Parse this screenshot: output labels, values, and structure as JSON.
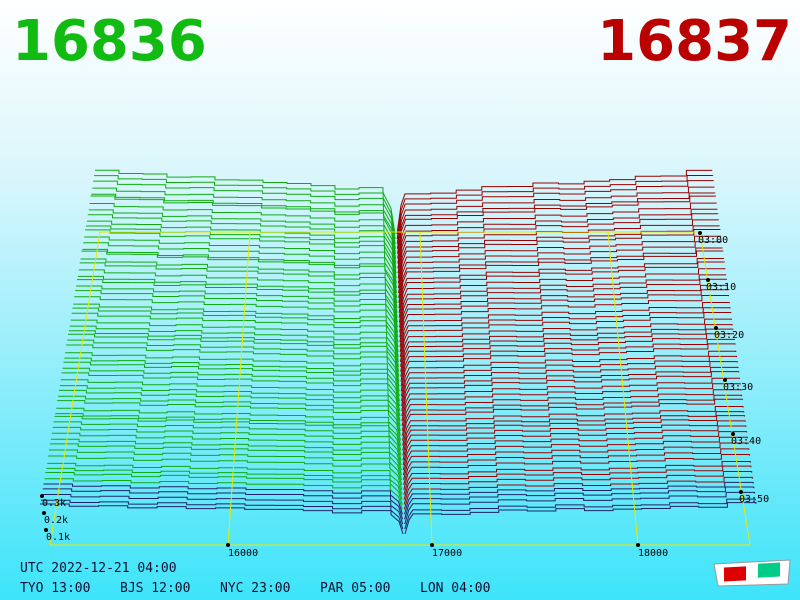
{
  "header": {
    "bid": "16836",
    "ask": "16837"
  },
  "price_axis": {
    "labels": [
      "16000",
      "17000",
      "18000"
    ]
  },
  "volume_axis": {
    "labels": [
      "0.3k",
      "0.2k",
      "0.1k"
    ]
  },
  "time_axis": {
    "labels": [
      "03:00",
      "03:10",
      "03:20",
      "03:30",
      "03:40",
      "03:50"
    ]
  },
  "clock": {
    "utc": "UTC 2022-12-21 04:00",
    "zones": [
      "TYO 13:00",
      "BJS 12:00",
      "NYC 23:00",
      "PAR 05:00",
      "LON 04:00"
    ]
  }
}
